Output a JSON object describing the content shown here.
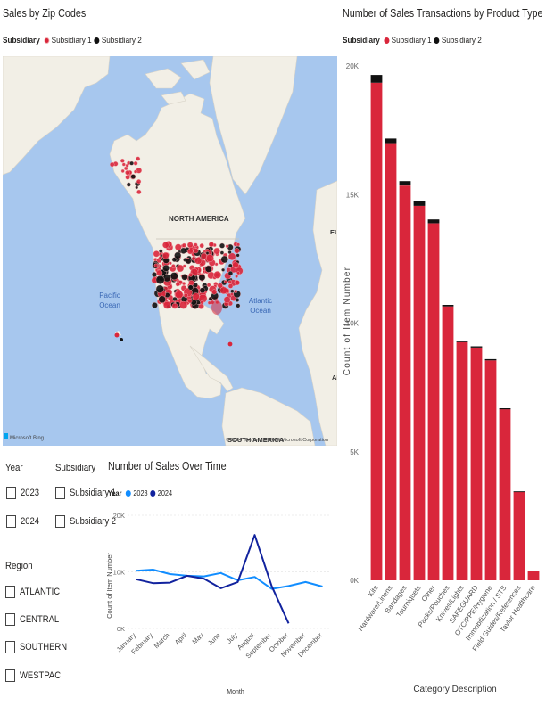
{
  "map_visual": {
    "title": "Sales by Zip Codes",
    "legend_title": "Subsidiary",
    "legend_items": [
      {
        "label": "Subsidiary 1",
        "color": "#d9263b"
      },
      {
        "label": "Subsidiary 2",
        "color": "#111111"
      }
    ],
    "labels": {
      "north_america": "NORTH AMERICA",
      "south_america": "SOUTH AMERICA",
      "pacific": "Pacific\nOcean",
      "atlantic": "Atlantic\nOcean",
      "eu_edge": "EU",
      "af_edge": "AF"
    },
    "provider": "Microsoft Bing",
    "copyright": "© 2024 TomTom, © 2024 Microsoft Corporation"
  },
  "filters": {
    "year": {
      "header": "Year",
      "options": [
        "2023",
        "2024"
      ]
    },
    "subsidiary": {
      "header": "Subsidiary",
      "options": [
        "Subsidiary 1",
        "Subsidiary 2"
      ]
    },
    "region": {
      "header": "Region",
      "options": [
        "ATLANTIC",
        "CENTRAL",
        "SOUTHERN",
        "WESTPAC"
      ]
    }
  },
  "chart_data": [
    {
      "type": "line",
      "title": "Number of Sales Over Time",
      "legend_title": "Year",
      "xlabel": "Month",
      "ylabel": "Count of Item Number",
      "categories": [
        "January",
        "February",
        "March",
        "April",
        "May",
        "June",
        "July",
        "August",
        "September",
        "October",
        "November",
        "December"
      ],
      "yticks": [
        "0K",
        "10K",
        "20K"
      ],
      "ylim": [
        0,
        20000
      ],
      "series": [
        {
          "name": "2023",
          "color": "#118dff",
          "values": [
            10200,
            10400,
            9600,
            9300,
            9200,
            9800,
            8500,
            9100,
            7000,
            7500,
            8200,
            7400
          ]
        },
        {
          "name": "2024",
          "color": "#12239e",
          "values": [
            8700,
            8000,
            8100,
            9300,
            8800,
            7100,
            8200,
            16500,
            7500,
            900,
            null,
            null
          ]
        }
      ]
    },
    {
      "type": "bar",
      "stacked": true,
      "title": "Number of Sales Transactions by Product Type",
      "legend_title": "Subsidiary",
      "xlabel": "Category Description",
      "ylabel": "Count of Item Number",
      "yticks": [
        "0K",
        "5K",
        "10K",
        "15K",
        "20K"
      ],
      "ylim": [
        0,
        20000
      ],
      "categories": [
        "Kits",
        "Hardware/Linens",
        "Bandages",
        "Tourniquets",
        "Other",
        "Packs/Pouches",
        "Knives/Lights",
        "SAFEGUARD",
        "OTC/PPE/Hygiene",
        "Immobilization / STS",
        "Field Guides/References",
        "Taylor Healthcare"
      ],
      "series": [
        {
          "name": "Subsidiary 1",
          "color": "#d9263b",
          "values": [
            19350,
            17000,
            15350,
            14560,
            13880,
            10650,
            9260,
            9050,
            8550,
            6650,
            3430,
            380
          ]
        },
        {
          "name": "Subsidiary 2",
          "color": "#111111",
          "values": [
            300,
            180,
            170,
            170,
            150,
            60,
            60,
            50,
            50,
            40,
            30,
            0
          ]
        }
      ]
    }
  ]
}
